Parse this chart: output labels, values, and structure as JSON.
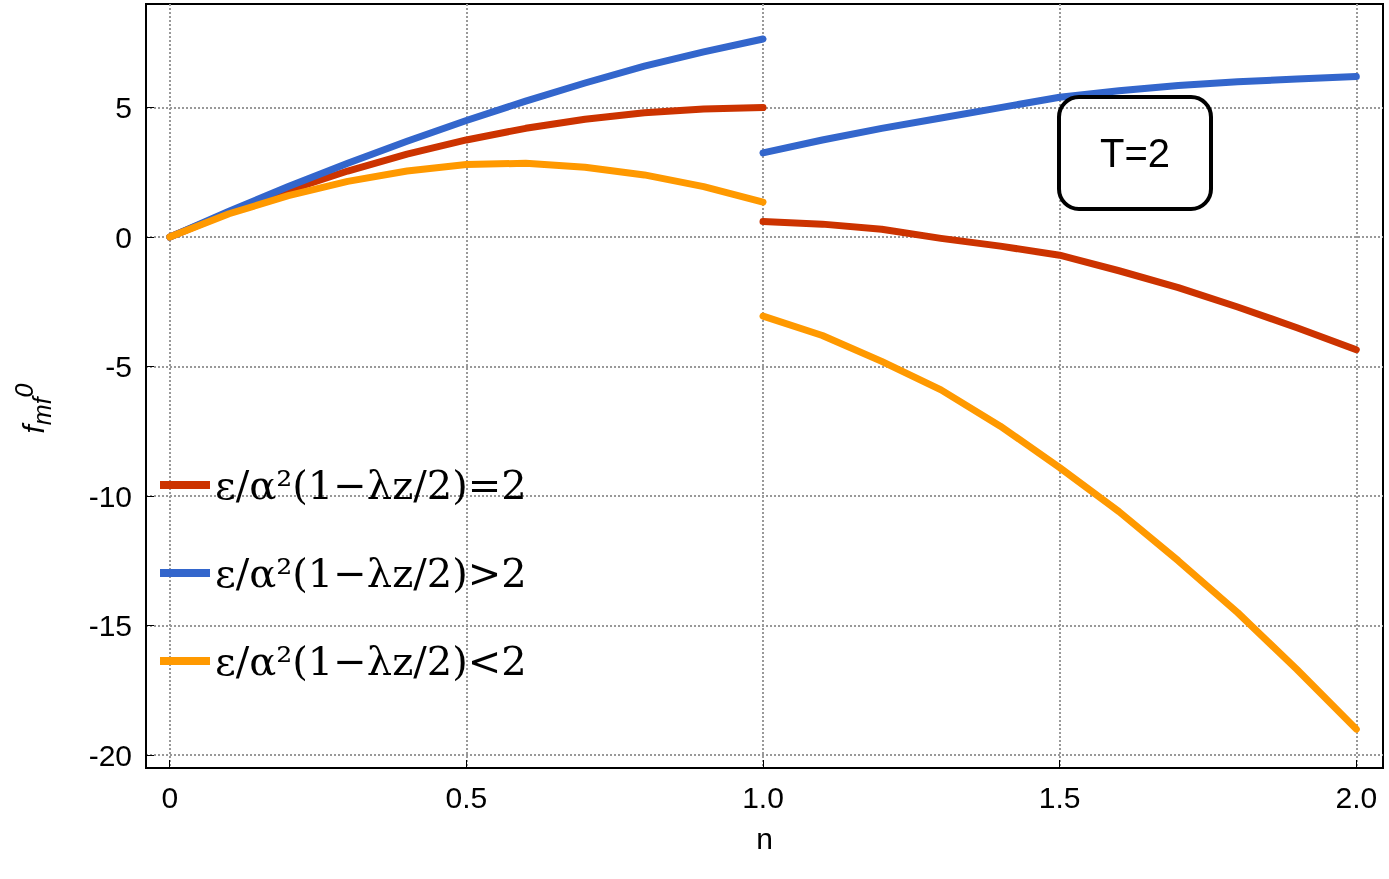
{
  "chart_data": {
    "type": "line",
    "xlabel": "n",
    "ylabel": "f$_{mf}$$^{0}$",
    "annotations": [
      "T=2"
    ],
    "xlim": [
      -0.04,
      2.045
    ],
    "ylim": [
      -20.5,
      9
    ],
    "xticks": [
      0,
      0.5,
      {
        "value": 1,
        "label": "1.0"
      },
      1.5,
      {
        "value": 2,
        "label": "2.0"
      }
    ],
    "yticks": [
      -20,
      -15,
      -10,
      -5,
      0,
      5
    ],
    "grid": true,
    "legend": "left",
    "marker": "none",
    "line_style": "solid",
    "series": [
      {
        "name": "ε/α²(1−λz/2)=2",
        "color": "#cc3300",
        "x": [
          0,
          0.1,
          0.2,
          0.3,
          0.4,
          0.5,
          0.6,
          0.7,
          0.8,
          0.9,
          1.0
        ],
        "values": [
          0,
          0.95,
          1.8,
          2.55,
          3.2,
          3.75,
          4.2,
          4.55,
          4.8,
          4.95,
          5.0
        ]
      },
      {
        "name": "ε/α²(1−λz/2)>2",
        "color": "#3366cc",
        "x": [
          0,
          0.1,
          0.2,
          0.3,
          0.4,
          0.5,
          0.6,
          0.7,
          0.8,
          0.9,
          1.0
        ],
        "values": [
          0,
          1.0,
          1.95,
          2.85,
          3.7,
          4.5,
          5.25,
          5.95,
          6.6,
          7.15,
          7.65
        ]
      },
      {
        "name": "ε/α²(1−λz/2)<2",
        "color": "#ff9900",
        "x": [
          0,
          0.1,
          0.2,
          0.3,
          0.4,
          0.5,
          0.6,
          0.7,
          0.8,
          0.9,
          1.0
        ],
        "values": [
          0,
          0.9,
          1.6,
          2.15,
          2.55,
          2.8,
          2.85,
          2.7,
          2.4,
          1.95,
          1.35
        ]
      },
      {
        "color": "#cc3300",
        "x": [
          1.0,
          1.1,
          1.2,
          1.3,
          1.4,
          1.5,
          1.6,
          1.7,
          1.8,
          1.9,
          2.0
        ],
        "values": [
          0.6,
          0.5,
          0.3,
          -0.05,
          -0.35,
          -0.7,
          -1.3,
          -1.95,
          -2.7,
          -3.5,
          -4.35
        ]
      },
      {
        "color": "#3366cc",
        "x": [
          1.0,
          1.1,
          1.2,
          1.3,
          1.4,
          1.5,
          1.6,
          1.7,
          1.8,
          1.9,
          2.0
        ],
        "values": [
          3.25,
          3.75,
          4.2,
          4.6,
          5.0,
          5.4,
          5.65,
          5.85,
          6.0,
          6.1,
          6.2
        ]
      },
      {
        "color": "#ff9900",
        "x": [
          1.0,
          1.1,
          1.2,
          1.3,
          1.4,
          1.5,
          1.6,
          1.7,
          1.8,
          1.9,
          2.0
        ],
        "values": [
          -3.05,
          -3.8,
          -4.8,
          -5.9,
          -7.3,
          -8.9,
          -10.6,
          -12.5,
          -14.5,
          -16.7,
          -19.0
        ]
      }
    ]
  }
}
